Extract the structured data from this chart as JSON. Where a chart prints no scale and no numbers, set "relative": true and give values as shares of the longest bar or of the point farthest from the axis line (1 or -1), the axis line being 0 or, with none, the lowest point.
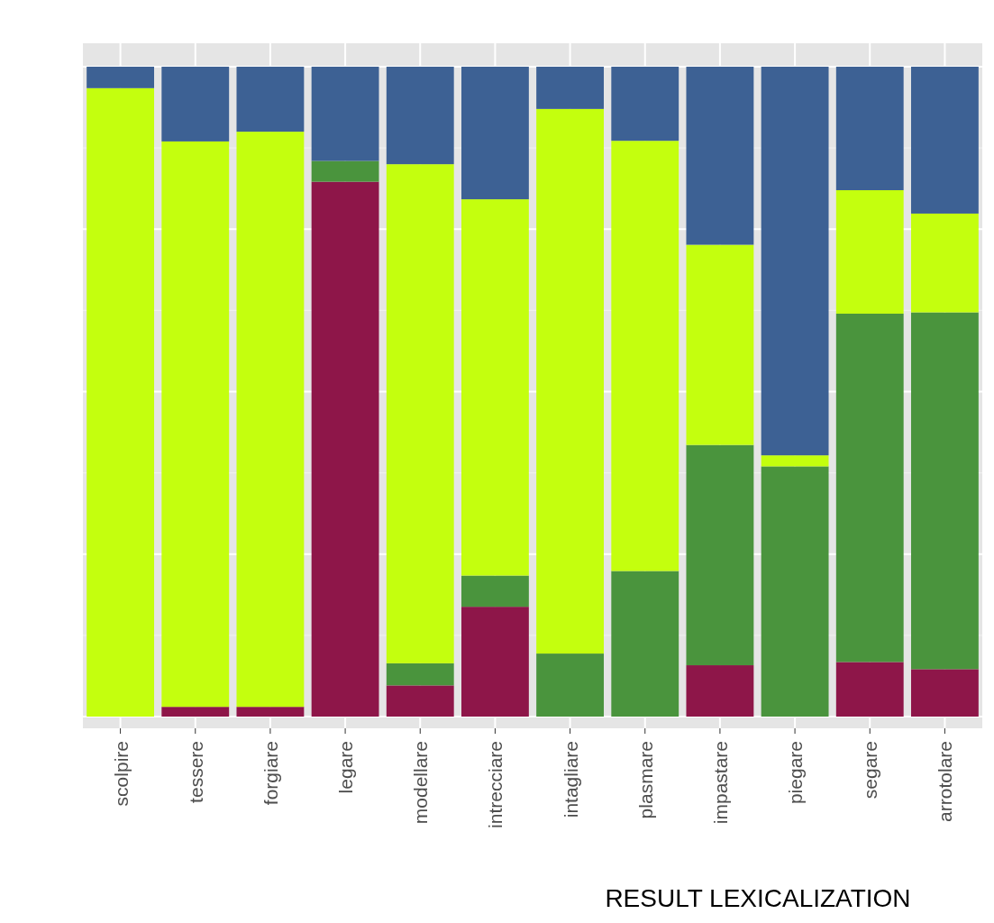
{
  "chart_data": {
    "type": "bar",
    "stacked": true,
    "relative": true,
    "xlabel": "RESULT LEXICALIZATION",
    "grid": true,
    "tick_labels": "x",
    "categories": [
      "scolpire",
      "tessere",
      "forgiare",
      "legare",
      "modellare",
      "intrecciare",
      "intagliare",
      "plasmare",
      "impastare",
      "piegare",
      "segare",
      "arrotolare"
    ],
    "series": [
      {
        "color": "#8e1649",
        "values": [
          0,
          0.015,
          0.015,
          0.823,
          0.048,
          0.169,
          0,
          0,
          0.079,
          0,
          0.084,
          0.073
        ]
      },
      {
        "color": "#4a943d",
        "values": [
          0,
          0,
          0,
          0.032,
          0.034,
          0.048,
          0.097,
          0.224,
          0.339,
          0.385,
          0.536,
          0.549
        ]
      },
      {
        "color": "#c4ff0e",
        "values": [
          0.967,
          0.87,
          0.885,
          0,
          0.768,
          0.579,
          0.838,
          0.662,
          0.308,
          0.017,
          0.19,
          0.152
        ]
      },
      {
        "color": "#3d6194",
        "values": [
          0.033,
          0.115,
          0.1,
          0.145,
          0.15,
          0.204,
          0.065,
          0.114,
          0.274,
          0.598,
          0.19,
          0.226
        ]
      }
    ]
  }
}
